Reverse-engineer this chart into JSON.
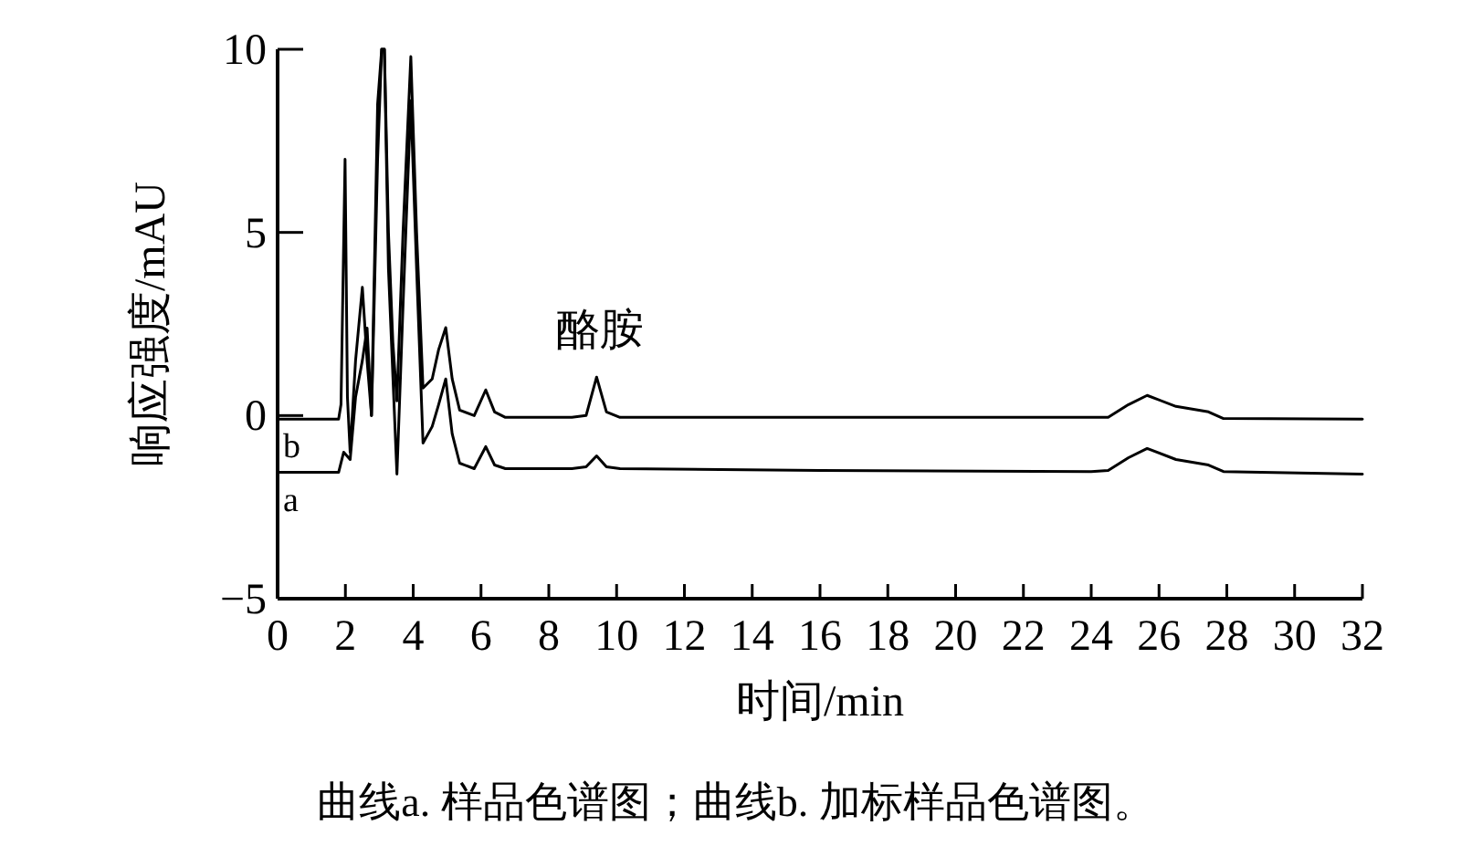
{
  "chart_data": {
    "type": "line",
    "xlabel": "时间/min",
    "ylabel": "响应强度/mAU",
    "xlim": [
      0,
      32
    ],
    "ylim": [
      -5,
      10
    ],
    "xticks": [
      0,
      2,
      4,
      6,
      8,
      10,
      12,
      14,
      16,
      18,
      20,
      22,
      24,
      26,
      28,
      30,
      32
    ],
    "yticks": [
      {
        "value": -5,
        "label": "−5"
      },
      0,
      5,
      10
    ],
    "series": [
      {
        "name": "b",
        "color": "#000000",
        "x": [
          0,
          1.8,
          1.87,
          1.99,
          2.06,
          2.14,
          2.3,
          2.5,
          2.64,
          2.77,
          2.95,
          3.07,
          3.15,
          3.27,
          3.4,
          3.52,
          3.7,
          3.93,
          4.1,
          4.29,
          4.56,
          4.75,
          4.96,
          5.15,
          5.37,
          5.8,
          6.14,
          6.4,
          6.72,
          8.68,
          9.1,
          9.41,
          9.7,
          10.1,
          12,
          16,
          20,
          24,
          24.5,
          25.1,
          25.65,
          26.5,
          27.46,
          27.9,
          32
        ],
        "values": [
          -0.1,
          -0.1,
          0.3,
          7.0,
          0.5,
          -1.0,
          1.5,
          3.5,
          1.5,
          0.0,
          8.5,
          10,
          10,
          5,
          2,
          0.4,
          5,
          9.8,
          5,
          0.75,
          1.0,
          1.8,
          2.4,
          1.0,
          0.15,
          0.0,
          0.7,
          0.1,
          -0.05,
          -0.05,
          0.0,
          1.05,
          0.1,
          -0.05,
          -0.05,
          -0.05,
          -0.05,
          -0.05,
          -0.05,
          0.3,
          0.55,
          0.25,
          0.1,
          -0.08,
          -0.1
        ]
      },
      {
        "name": "a",
        "color": "#000000",
        "x": [
          0,
          1.8,
          1.95,
          2.14,
          2.3,
          2.5,
          2.64,
          2.77,
          2.95,
          3.07,
          3.15,
          3.27,
          3.52,
          3.7,
          3.93,
          4.1,
          4.29,
          4.56,
          4.75,
          4.96,
          5.15,
          5.37,
          5.8,
          6.14,
          6.4,
          6.72,
          8.68,
          9.1,
          9.41,
          9.7,
          10.1,
          16,
          24,
          24.5,
          25.1,
          25.65,
          26.5,
          27.46,
          27.9,
          32
        ],
        "values": [
          -1.55,
          -1.55,
          -1.0,
          -1.2,
          0.5,
          1.5,
          2.39,
          0,
          7,
          10,
          10,
          4,
          -1.6,
          3,
          8.6,
          4,
          -0.75,
          -0.3,
          0.3,
          1.0,
          -0.5,
          -1.3,
          -1.45,
          -0.85,
          -1.35,
          -1.45,
          -1.45,
          -1.4,
          -1.1,
          -1.4,
          -1.45,
          -1.5,
          -1.53,
          -1.5,
          -1.15,
          -0.9,
          -1.2,
          -1.35,
          -1.53,
          -1.6
        ]
      }
    ],
    "annotations": [
      {
        "text": "酪胺",
        "x": 9.5,
        "y": 1.05
      },
      "曲线a. 样品色谱图；曲线b. 加标样品色谱图。"
    ]
  }
}
